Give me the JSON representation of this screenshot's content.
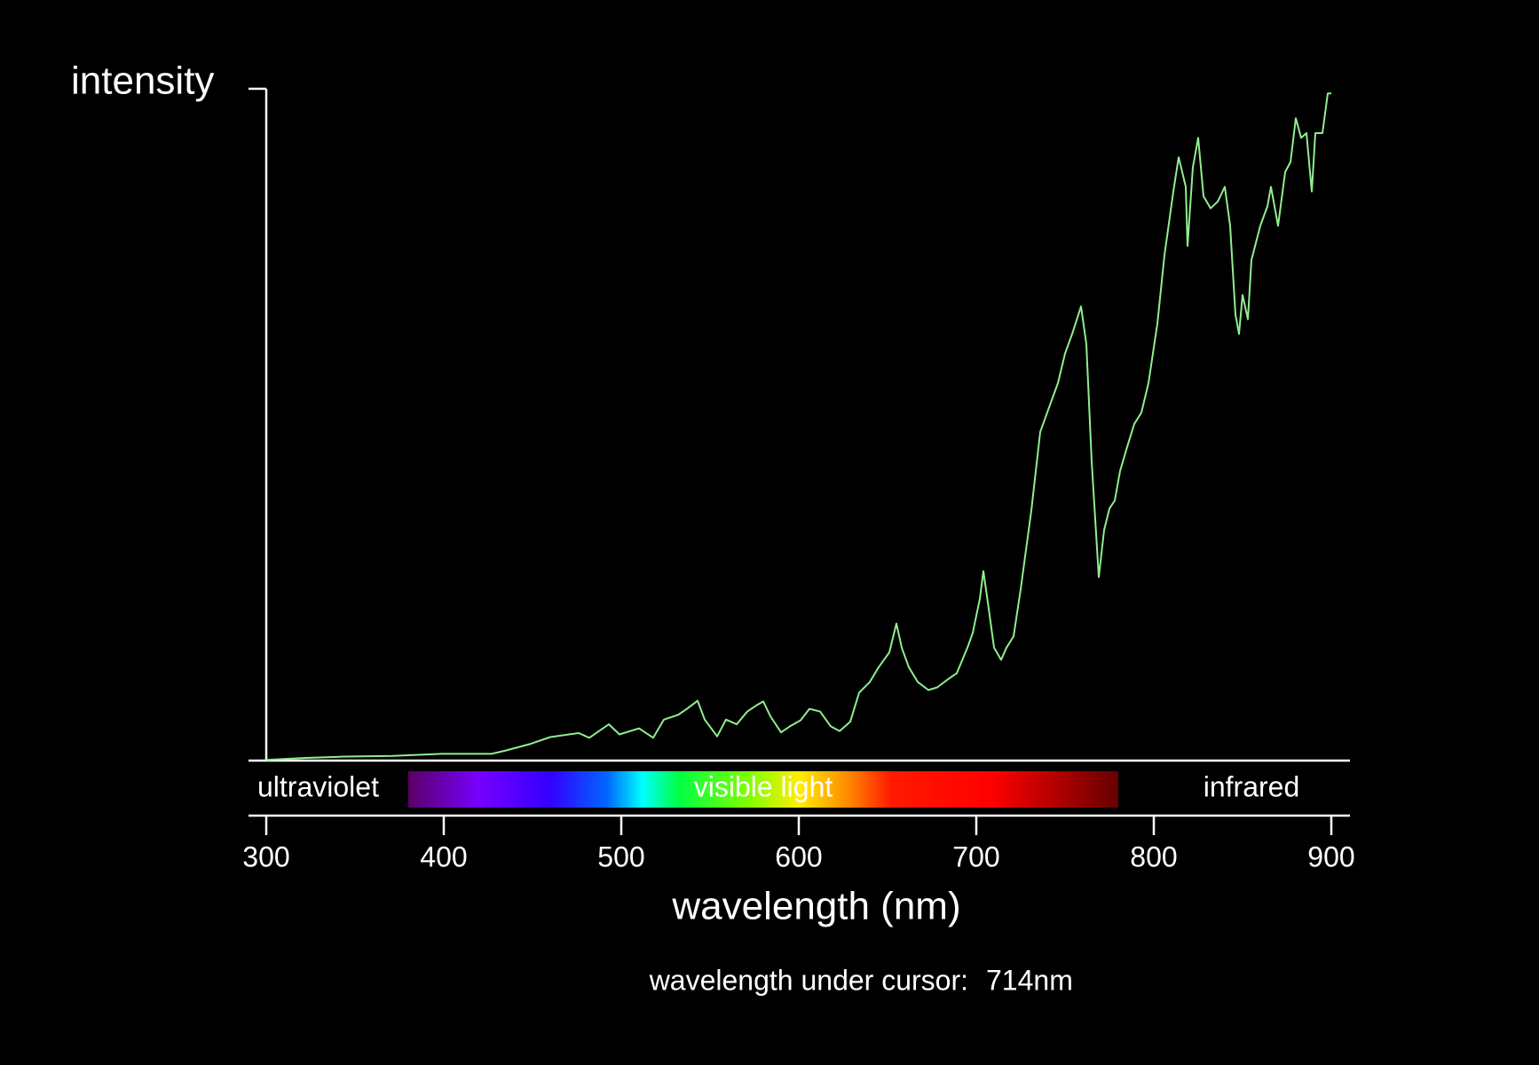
{
  "chart_data": {
    "type": "line",
    "y_label": "intensity",
    "x_label": "wavelength (nm)",
    "band_labels": {
      "ultraviolet": "ultraviolet",
      "visible": "visible light",
      "infrared": "infrared"
    },
    "visible_range": [
      380,
      780
    ],
    "cursor_label": "wavelength under cursor:",
    "cursor_value": "714nm",
    "xlim": [
      300,
      900
    ],
    "xticks": [
      300,
      400,
      500,
      600,
      700,
      800,
      900
    ],
    "ylim": [
      0,
      100
    ],
    "x": [
      300,
      322,
      344,
      371,
      399,
      427,
      435,
      449,
      460,
      476,
      482,
      493,
      499,
      510,
      518,
      524,
      532,
      537,
      543,
      547,
      554,
      559,
      565,
      571,
      576,
      580,
      584,
      590,
      595,
      601,
      606,
      612,
      618,
      623,
      629,
      634,
      640,
      645,
      651,
      655,
      658,
      662,
      667,
      673,
      678,
      684,
      689,
      695,
      698,
      702,
      704,
      707,
      710,
      714,
      717,
      721,
      725,
      731,
      736,
      742,
      746,
      750,
      754,
      759,
      762,
      765,
      769,
      772,
      775,
      778,
      781,
      785,
      789,
      793,
      797,
      802,
      806,
      811,
      814,
      818,
      819,
      822,
      825,
      828,
      832,
      836,
      840,
      843,
      846,
      848,
      850,
      853,
      855,
      860,
      864,
      866,
      870,
      874,
      877,
      880,
      883,
      886,
      889,
      891,
      895,
      898,
      900
    ],
    "series": [
      {
        "name": "intensity",
        "color": "#90ee90",
        "values": [
          0.1,
          0.4,
          0.6,
          0.7,
          1.0,
          1.0,
          1.5,
          2.5,
          3.5,
          4.1,
          3.4,
          5.4,
          3.9,
          4.8,
          3.4,
          6.1,
          6.8,
          7.7,
          8.9,
          6.1,
          3.6,
          6.1,
          5.4,
          7.3,
          8.2,
          8.8,
          6.6,
          4.2,
          5.1,
          6.0,
          7.7,
          7.3,
          5.1,
          4.4,
          5.8,
          10.1,
          11.7,
          13.9,
          16.1,
          20.4,
          16.8,
          13.9,
          11.7,
          10.5,
          10.9,
          12.1,
          13.0,
          16.8,
          19.0,
          24.1,
          28.2,
          22.6,
          16.8,
          15.0,
          16.8,
          18.5,
          25.5,
          37.2,
          48.9,
          53.3,
          56.2,
          60.6,
          63.5,
          67.6,
          62.0,
          44.5,
          27.3,
          34.3,
          37.5,
          38.7,
          43.1,
          46.7,
          50.1,
          51.8,
          56.2,
          65.0,
          75.2,
          84.7,
          89.8,
          85.4,
          76.6,
          88.3,
          92.7,
          84.0,
          82.2,
          83.2,
          85.4,
          79.6,
          66.4,
          63.5,
          69.3,
          65.7,
          74.5,
          79.6,
          82.5,
          85.4,
          79.6,
          87.6,
          89.1,
          95.6,
          92.7,
          93.4,
          84.7,
          93.4,
          93.4,
          99.3,
          99.3
        ]
      }
    ]
  }
}
